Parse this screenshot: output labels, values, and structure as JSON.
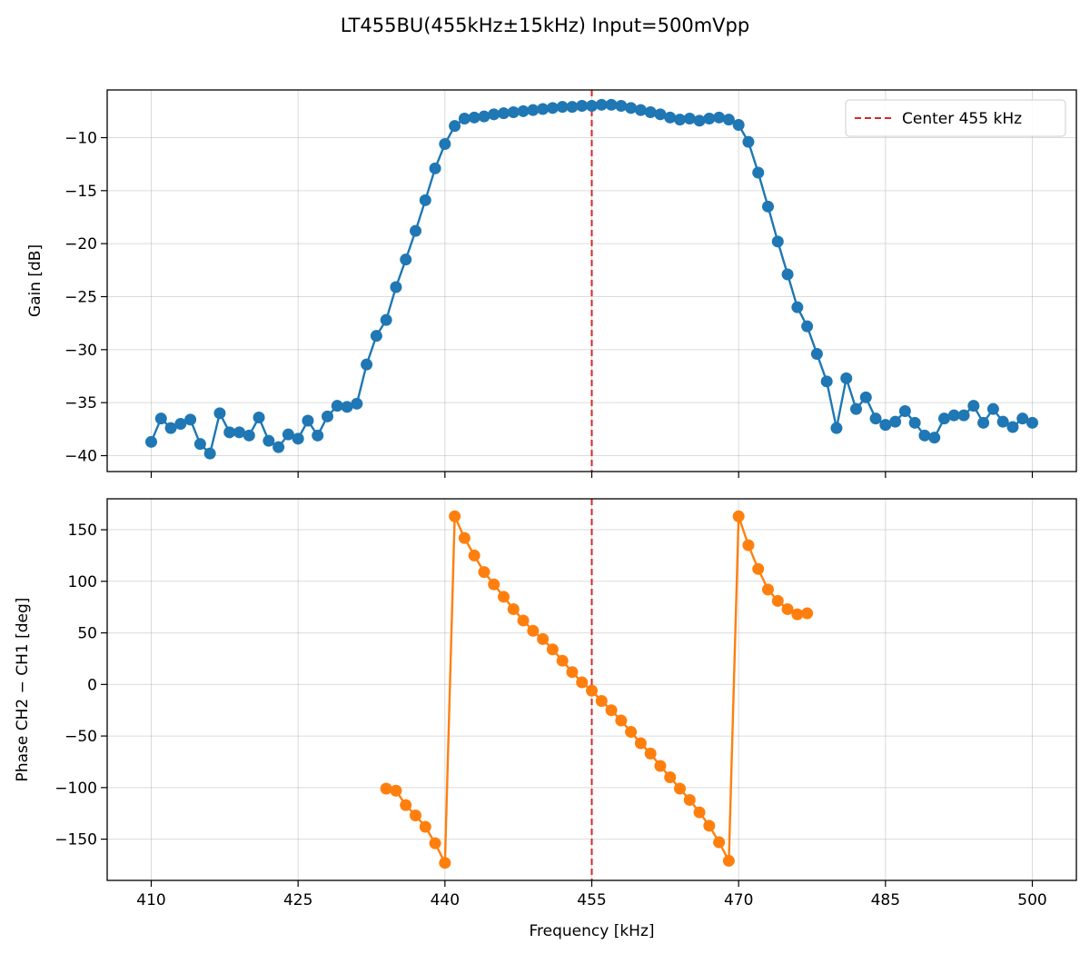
{
  "figure": {
    "title": "LT455BU(455kHz±15kHz) Input=500mVpp"
  },
  "chart_data": [
    {
      "type": "line",
      "title": "",
      "xlabel": "",
      "ylabel": "Gain [dB]",
      "xlim": [
        405.5,
        504.5
      ],
      "ylim": [
        -41.5,
        -5.5
      ],
      "xticks": [
        410,
        425,
        440,
        455,
        470,
        485,
        500
      ],
      "yticks": [
        -40,
        -35,
        -30,
        -25,
        -20,
        -15,
        -10
      ],
      "ytick_labels": [
        "−40",
        "−35",
        "−30",
        "−25",
        "−20",
        "−15",
        "−10"
      ],
      "grid": true,
      "legend": {
        "position": "top-right",
        "entries": [
          {
            "label": "Center 455 kHz",
            "style": "dashed",
            "color": "#d62728"
          }
        ]
      },
      "vline": {
        "x": 455,
        "color": "#d62728",
        "label": "Center 455 kHz"
      },
      "series": [
        {
          "color": "#1f77b4",
          "x": [
            410,
            411,
            412,
            413,
            414,
            415,
            416,
            417,
            418,
            419,
            420,
            421,
            422,
            423,
            424,
            425,
            426,
            427,
            428,
            429,
            430,
            431,
            432,
            433,
            434,
            435,
            436,
            437,
            438,
            439,
            440,
            441,
            442,
            443,
            444,
            445,
            446,
            447,
            448,
            449,
            450,
            451,
            452,
            453,
            454,
            455,
            456,
            457,
            458,
            459,
            460,
            461,
            462,
            463,
            464,
            465,
            466,
            467,
            468,
            469,
            470,
            471,
            472,
            473,
            474,
            475,
            476,
            477,
            478,
            479,
            480,
            481,
            482,
            483,
            484,
            485,
            486,
            487,
            488,
            489,
            490,
            491,
            492,
            493,
            494,
            495,
            496,
            497,
            498,
            499,
            500
          ],
          "y": [
            -38.7,
            -36.5,
            -37.4,
            -37.0,
            -36.6,
            -38.9,
            -39.8,
            -36.0,
            -37.8,
            -37.8,
            -38.1,
            -36.4,
            -38.6,
            -39.2,
            -38.0,
            -38.4,
            -36.7,
            -38.1,
            -36.3,
            -35.3,
            -35.4,
            -35.1,
            -31.4,
            -28.7,
            -27.2,
            -24.1,
            -21.5,
            -18.8,
            -15.9,
            -12.9,
            -10.6,
            -8.9,
            -8.2,
            -8.1,
            -8.0,
            -7.8,
            -7.7,
            -7.6,
            -7.5,
            -7.4,
            -7.3,
            -7.2,
            -7.1,
            -7.1,
            -7.0,
            -7.0,
            -6.9,
            -6.9,
            -7.0,
            -7.2,
            -7.4,
            -7.6,
            -7.8,
            -8.1,
            -8.3,
            -8.2,
            -8.4,
            -8.2,
            -8.1,
            -8.3,
            -8.8,
            -10.4,
            -13.3,
            -16.5,
            -19.8,
            -22.9,
            -26.0,
            -27.8,
            -30.4,
            -33.0,
            -37.4,
            -32.7,
            -35.6,
            -34.5,
            -36.5,
            -37.1,
            -36.8,
            -35.8,
            -36.9,
            -38.1,
            -38.3,
            -36.5,
            -36.2,
            -36.2,
            -35.3,
            -36.9,
            -35.6,
            -36.8,
            -37.3,
            -36.5,
            -36.9
          ]
        }
      ]
    },
    {
      "type": "line",
      "title": "",
      "xlabel": "Frequency [kHz]",
      "ylabel": "Phase CH2 − CH1 [deg]",
      "xlim": [
        405.5,
        504.5
      ],
      "ylim": [
        -190,
        180
      ],
      "xticks": [
        410,
        425,
        440,
        455,
        470,
        485,
        500
      ],
      "yticks": [
        -150,
        -100,
        -50,
        0,
        50,
        100,
        150
      ],
      "ytick_labels": [
        "−150",
        "−100",
        "−50",
        "0",
        "50",
        "100",
        "150"
      ],
      "xtick_labels": [
        "410",
        "425",
        "440",
        "455",
        "470",
        "485",
        "500"
      ],
      "grid": true,
      "vline": {
        "x": 455,
        "color": "#d62728"
      },
      "series": [
        {
          "color": "#ff7f0e",
          "x": [
            434,
            435,
            436,
            437,
            438,
            439,
            440,
            441,
            442,
            443,
            444,
            445,
            446,
            447,
            448,
            449,
            450,
            451,
            452,
            453,
            454,
            455,
            456,
            457,
            458,
            459,
            460,
            461,
            462,
            463,
            464,
            465,
            466,
            467,
            468,
            469,
            470,
            471,
            472,
            473,
            474,
            475,
            476,
            477
          ],
          "y": [
            -101,
            -103,
            -117,
            -127,
            -138,
            -154,
            -173,
            163,
            142,
            125,
            109,
            97,
            85,
            73,
            62,
            52,
            44,
            34,
            23,
            12,
            2,
            -6,
            -16,
            -25,
            -35,
            -46,
            -57,
            -67,
            -79,
            -90,
            -101,
            -112,
            -124,
            -137,
            -153,
            -171,
            163,
            135,
            112,
            92,
            81,
            73,
            68,
            69
          ]
        }
      ]
    }
  ]
}
